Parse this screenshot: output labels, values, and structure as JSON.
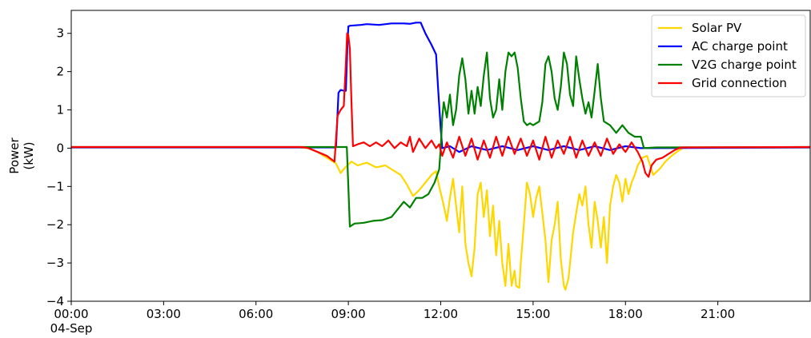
{
  "chart_data": {
    "type": "line",
    "title": "",
    "xlabel": "",
    "ylabel_lines": [
      "Power",
      "(kW)"
    ],
    "x_unit": "hours of day (04-Sep)",
    "xlim": [
      0,
      24
    ],
    "ylim": [
      -4,
      3.6
    ],
    "x_ticks": [
      {
        "x": 0,
        "label": "00:00",
        "sublabel": "04-Sep"
      },
      {
        "x": 3,
        "label": "03:00"
      },
      {
        "x": 6,
        "label": "06:00"
      },
      {
        "x": 9,
        "label": "09:00"
      },
      {
        "x": 12,
        "label": "12:00"
      },
      {
        "x": 15,
        "label": "15:00"
      },
      {
        "x": 18,
        "label": "18:00"
      },
      {
        "x": 21,
        "label": "21:00"
      }
    ],
    "y_ticks": [
      {
        "y": 3,
        "label": "3"
      },
      {
        "y": 2,
        "label": "2"
      },
      {
        "y": 1,
        "label": "1"
      },
      {
        "y": 0,
        "label": "0"
      },
      {
        "y": -1,
        "label": "−1"
      },
      {
        "y": -2,
        "label": "−2"
      },
      {
        "y": -3,
        "label": "−3"
      },
      {
        "y": -4,
        "label": "−4"
      }
    ],
    "grid": false,
    "legend_position": "top-right",
    "series": [
      {
        "name": "Solar PV",
        "color": "#ffd700",
        "points": [
          [
            0,
            0.02
          ],
          [
            7.4,
            0.02
          ],
          [
            7.7,
            0.0
          ],
          [
            8.0,
            -0.1
          ],
          [
            8.3,
            -0.25
          ],
          [
            8.6,
            -0.4
          ],
          [
            8.75,
            -0.65
          ],
          [
            8.9,
            -0.5
          ],
          [
            9.1,
            -0.35
          ],
          [
            9.3,
            -0.45
          ],
          [
            9.6,
            -0.38
          ],
          [
            9.9,
            -0.5
          ],
          [
            10.2,
            -0.45
          ],
          [
            10.5,
            -0.6
          ],
          [
            10.7,
            -0.7
          ],
          [
            10.9,
            -0.95
          ],
          [
            11.1,
            -1.25
          ],
          [
            11.3,
            -1.1
          ],
          [
            11.5,
            -0.9
          ],
          [
            11.7,
            -0.7
          ],
          [
            11.85,
            -0.6
          ],
          [
            11.95,
            -1.0
          ],
          [
            12.1,
            -1.5
          ],
          [
            12.2,
            -1.9
          ],
          [
            12.3,
            -1.3
          ],
          [
            12.4,
            -0.8
          ],
          [
            12.5,
            -1.5
          ],
          [
            12.6,
            -2.2
          ],
          [
            12.7,
            -1.0
          ],
          [
            12.8,
            -2.5
          ],
          [
            12.9,
            -3.0
          ],
          [
            13.0,
            -3.35
          ],
          [
            13.1,
            -2.6
          ],
          [
            13.2,
            -1.2
          ],
          [
            13.3,
            -0.9
          ],
          [
            13.4,
            -1.8
          ],
          [
            13.5,
            -1.1
          ],
          [
            13.6,
            -2.3
          ],
          [
            13.7,
            -1.5
          ],
          [
            13.8,
            -2.8
          ],
          [
            13.9,
            -1.9
          ],
          [
            14.0,
            -3.0
          ],
          [
            14.1,
            -3.6
          ],
          [
            14.2,
            -2.5
          ],
          [
            14.3,
            -3.6
          ],
          [
            14.4,
            -3.2
          ],
          [
            14.45,
            -3.6
          ],
          [
            14.55,
            -3.65
          ],
          [
            14.6,
            -3.0
          ],
          [
            14.7,
            -2.0
          ],
          [
            14.8,
            -0.9
          ],
          [
            14.9,
            -1.2
          ],
          [
            15.0,
            -1.8
          ],
          [
            15.1,
            -1.3
          ],
          [
            15.2,
            -1.0
          ],
          [
            15.3,
            -1.7
          ],
          [
            15.4,
            -2.4
          ],
          [
            15.5,
            -3.5
          ],
          [
            15.6,
            -2.4
          ],
          [
            15.7,
            -2.0
          ],
          [
            15.8,
            -1.4
          ],
          [
            15.9,
            -2.9
          ],
          [
            16.0,
            -3.6
          ],
          [
            16.05,
            -3.7
          ],
          [
            16.15,
            -3.4
          ],
          [
            16.3,
            -2.2
          ],
          [
            16.4,
            -1.7
          ],
          [
            16.5,
            -1.2
          ],
          [
            16.6,
            -1.5
          ],
          [
            16.7,
            -1.0
          ],
          [
            16.8,
            -2.0
          ],
          [
            16.9,
            -2.6
          ],
          [
            17.0,
            -1.4
          ],
          [
            17.1,
            -1.9
          ],
          [
            17.2,
            -2.6
          ],
          [
            17.3,
            -1.8
          ],
          [
            17.4,
            -3.0
          ],
          [
            17.5,
            -1.5
          ],
          [
            17.6,
            -1.0
          ],
          [
            17.7,
            -0.7
          ],
          [
            17.8,
            -0.9
          ],
          [
            17.9,
            -1.4
          ],
          [
            18.0,
            -0.8
          ],
          [
            18.1,
            -1.2
          ],
          [
            18.2,
            -0.9
          ],
          [
            18.3,
            -0.7
          ],
          [
            18.4,
            -0.45
          ],
          [
            18.55,
            -0.25
          ],
          [
            18.7,
            -0.2
          ],
          [
            18.9,
            -0.7
          ],
          [
            19.1,
            -0.55
          ],
          [
            19.3,
            -0.35
          ],
          [
            19.5,
            -0.2
          ],
          [
            19.7,
            -0.08
          ],
          [
            19.9,
            0.02
          ],
          [
            24,
            0.02
          ]
        ]
      },
      {
        "name": "AC charge point",
        "color": "#0000ff",
        "points": [
          [
            0,
            0.02
          ],
          [
            8.6,
            0.02
          ],
          [
            8.68,
            1.45
          ],
          [
            8.75,
            1.52
          ],
          [
            8.85,
            1.5
          ],
          [
            8.92,
            1.5
          ],
          [
            8.97,
            2.7
          ],
          [
            9.0,
            3.18
          ],
          [
            9.05,
            3.2
          ],
          [
            9.4,
            3.22
          ],
          [
            9.6,
            3.24
          ],
          [
            10.0,
            3.22
          ],
          [
            10.4,
            3.26
          ],
          [
            10.8,
            3.26
          ],
          [
            11.0,
            3.25
          ],
          [
            11.2,
            3.28
          ],
          [
            11.35,
            3.28
          ],
          [
            11.5,
            3.0
          ],
          [
            11.7,
            2.7
          ],
          [
            11.85,
            2.45
          ],
          [
            11.92,
            1.5
          ],
          [
            12.0,
            0.5
          ],
          [
            12.05,
            0.0
          ],
          [
            12.3,
            0.05
          ],
          [
            12.6,
            -0.1
          ],
          [
            13.0,
            0.05
          ],
          [
            13.5,
            -0.05
          ],
          [
            14.0,
            0.05
          ],
          [
            14.5,
            -0.05
          ],
          [
            15.0,
            0.05
          ],
          [
            15.5,
            -0.05
          ],
          [
            16.0,
            0.05
          ],
          [
            16.5,
            -0.05
          ],
          [
            17.0,
            0.05
          ],
          [
            17.5,
            -0.05
          ],
          [
            18.0,
            0.05
          ],
          [
            18.5,
            0.0
          ],
          [
            24,
            0.02
          ]
        ]
      },
      {
        "name": "V2G charge point",
        "color": "#008000",
        "points": [
          [
            0,
            0.03
          ],
          [
            8.95,
            0.03
          ],
          [
            9.0,
            -1.0
          ],
          [
            9.05,
            -2.05
          ],
          [
            9.2,
            -1.97
          ],
          [
            9.5,
            -1.95
          ],
          [
            9.8,
            -1.9
          ],
          [
            10.1,
            -1.88
          ],
          [
            10.4,
            -1.8
          ],
          [
            10.6,
            -1.6
          ],
          [
            10.8,
            -1.4
          ],
          [
            11.0,
            -1.55
          ],
          [
            11.2,
            -1.3
          ],
          [
            11.4,
            -1.3
          ],
          [
            11.6,
            -1.2
          ],
          [
            11.8,
            -0.9
          ],
          [
            11.95,
            -0.55
          ],
          [
            12.0,
            0.0
          ],
          [
            12.05,
            0.8
          ],
          [
            12.1,
            1.2
          ],
          [
            12.2,
            0.8
          ],
          [
            12.3,
            1.4
          ],
          [
            12.4,
            0.6
          ],
          [
            12.5,
            1.0
          ],
          [
            12.6,
            1.9
          ],
          [
            12.7,
            2.35
          ],
          [
            12.8,
            1.8
          ],
          [
            12.9,
            0.9
          ],
          [
            13.0,
            1.5
          ],
          [
            13.1,
            0.9
          ],
          [
            13.2,
            1.6
          ],
          [
            13.3,
            1.1
          ],
          [
            13.4,
            1.9
          ],
          [
            13.5,
            2.5
          ],
          [
            13.6,
            1.3
          ],
          [
            13.7,
            0.8
          ],
          [
            13.8,
            1.0
          ],
          [
            13.9,
            1.8
          ],
          [
            14.0,
            1.0
          ],
          [
            14.1,
            2.0
          ],
          [
            14.2,
            2.5
          ],
          [
            14.3,
            2.4
          ],
          [
            14.4,
            2.5
          ],
          [
            14.5,
            2.1
          ],
          [
            14.6,
            1.3
          ],
          [
            14.7,
            0.7
          ],
          [
            14.8,
            0.6
          ],
          [
            14.9,
            0.65
          ],
          [
            15.0,
            0.6
          ],
          [
            15.2,
            0.7
          ],
          [
            15.3,
            1.2
          ],
          [
            15.4,
            2.2
          ],
          [
            15.5,
            2.4
          ],
          [
            15.6,
            2.0
          ],
          [
            15.7,
            1.3
          ],
          [
            15.8,
            1.0
          ],
          [
            15.9,
            1.6
          ],
          [
            16.0,
            2.5
          ],
          [
            16.1,
            2.2
          ],
          [
            16.2,
            1.4
          ],
          [
            16.3,
            1.1
          ],
          [
            16.4,
            2.4
          ],
          [
            16.5,
            1.8
          ],
          [
            16.6,
            1.3
          ],
          [
            16.7,
            0.9
          ],
          [
            16.8,
            1.2
          ],
          [
            16.9,
            0.8
          ],
          [
            17.0,
            1.5
          ],
          [
            17.1,
            2.2
          ],
          [
            17.2,
            1.3
          ],
          [
            17.3,
            0.7
          ],
          [
            17.5,
            0.6
          ],
          [
            17.7,
            0.4
          ],
          [
            17.9,
            0.6
          ],
          [
            18.1,
            0.4
          ],
          [
            18.3,
            0.3
          ],
          [
            18.5,
            0.3
          ],
          [
            18.6,
            0.0
          ],
          [
            19.0,
            0.02
          ],
          [
            24,
            0.03
          ]
        ]
      },
      {
        "name": "Grid connection",
        "color": "#ff0000",
        "points": [
          [
            0,
            0.03
          ],
          [
            7.5,
            0.03
          ],
          [
            7.7,
            0.0
          ],
          [
            8.0,
            -0.1
          ],
          [
            8.3,
            -0.2
          ],
          [
            8.55,
            -0.35
          ],
          [
            8.65,
            0.85
          ],
          [
            8.75,
            1.0
          ],
          [
            8.85,
            1.1
          ],
          [
            8.92,
            2.2
          ],
          [
            8.96,
            3.0
          ],
          [
            9.0,
            2.95
          ],
          [
            9.05,
            2.6
          ],
          [
            9.1,
            1.2
          ],
          [
            9.15,
            0.05
          ],
          [
            9.3,
            0.1
          ],
          [
            9.5,
            0.15
          ],
          [
            9.7,
            0.05
          ],
          [
            9.9,
            0.15
          ],
          [
            10.1,
            0.05
          ],
          [
            10.3,
            0.2
          ],
          [
            10.5,
            0.0
          ],
          [
            10.7,
            0.15
          ],
          [
            10.9,
            0.05
          ],
          [
            11.0,
            0.3
          ],
          [
            11.1,
            -0.1
          ],
          [
            11.3,
            0.25
          ],
          [
            11.5,
            0.0
          ],
          [
            11.7,
            0.2
          ],
          [
            11.85,
            0.0
          ],
          [
            11.95,
            0.1
          ],
          [
            12.05,
            -0.2
          ],
          [
            12.2,
            0.15
          ],
          [
            12.4,
            -0.25
          ],
          [
            12.6,
            0.3
          ],
          [
            12.8,
            -0.2
          ],
          [
            13.0,
            0.25
          ],
          [
            13.2,
            -0.3
          ],
          [
            13.4,
            0.2
          ],
          [
            13.6,
            -0.25
          ],
          [
            13.8,
            0.3
          ],
          [
            14.0,
            -0.2
          ],
          [
            14.2,
            0.3
          ],
          [
            14.4,
            -0.15
          ],
          [
            14.6,
            0.25
          ],
          [
            14.8,
            -0.2
          ],
          [
            15.0,
            0.2
          ],
          [
            15.2,
            -0.3
          ],
          [
            15.4,
            0.3
          ],
          [
            15.6,
            -0.25
          ],
          [
            15.8,
            0.2
          ],
          [
            16.0,
            -0.15
          ],
          [
            16.2,
            0.3
          ],
          [
            16.4,
            -0.25
          ],
          [
            16.6,
            0.2
          ],
          [
            16.8,
            -0.2
          ],
          [
            17.0,
            0.15
          ],
          [
            17.2,
            -0.2
          ],
          [
            17.4,
            0.25
          ],
          [
            17.6,
            -0.15
          ],
          [
            17.8,
            0.1
          ],
          [
            18.0,
            -0.1
          ],
          [
            18.2,
            0.15
          ],
          [
            18.4,
            -0.1
          ],
          [
            18.55,
            -0.35
          ],
          [
            18.65,
            -0.65
          ],
          [
            18.75,
            -0.75
          ],
          [
            18.85,
            -0.45
          ],
          [
            19.0,
            -0.3
          ],
          [
            19.2,
            -0.25
          ],
          [
            19.4,
            -0.15
          ],
          [
            19.6,
            -0.05
          ],
          [
            19.8,
            0.02
          ],
          [
            24,
            0.03
          ]
        ]
      }
    ]
  }
}
